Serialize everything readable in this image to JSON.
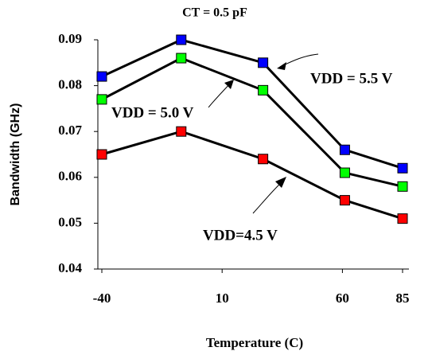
{
  "chart_data": {
    "type": "line",
    "title": "CT = 0.5 pF",
    "x_label": "Temperature (C)",
    "y_label": "Bandwidth (GHz)",
    "x": [
      -40,
      -7,
      27,
      61,
      85
    ],
    "xlim": [
      -40,
      85
    ],
    "xticks": [
      -40,
      10,
      60,
      85
    ],
    "ylim": [
      0.04,
      0.09
    ],
    "yticks": [
      0.04,
      0.05,
      0.06,
      0.07,
      0.08,
      0.09
    ],
    "series": [
      {
        "name": "VDD = 5.5 V",
        "color": "#0000ff",
        "values": [
          0.082,
          0.09,
          0.085,
          0.066,
          0.062
        ]
      },
      {
        "name": "VDD = 5.0 V",
        "color": "#00ff00",
        "values": [
          0.077,
          0.086,
          0.079,
          0.061,
          0.058
        ]
      },
      {
        "name": "VDD=4.5 V",
        "color": "#ff0000",
        "values": [
          0.065,
          0.07,
          0.064,
          0.055,
          0.051
        ]
      }
    ]
  }
}
